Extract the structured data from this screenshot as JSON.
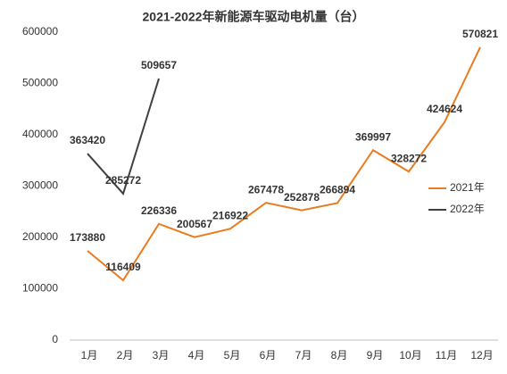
{
  "chart_data": {
    "type": "line",
    "title": "2021-2022年新能源车驱动电机量（台）",
    "categories": [
      "1月",
      "2月",
      "3月",
      "4月",
      "5月",
      "6月",
      "7月",
      "8月",
      "9月",
      "10月",
      "11月",
      "12月"
    ],
    "series": [
      {
        "name": "2021年",
        "color": "#e97c1f",
        "values": [
          173880,
          116409,
          226336,
          200567,
          216922,
          267478,
          252878,
          266894,
          369997,
          328272,
          424624,
          570821
        ]
      },
      {
        "name": "2022年",
        "color": "#404040",
        "values": [
          363420,
          285272,
          509657,
          null,
          null,
          null,
          null,
          null,
          null,
          null,
          null,
          null
        ]
      }
    ],
    "ylim": [
      0,
      600000
    ],
    "yticks": [
      0,
      100000,
      200000,
      300000,
      400000,
      500000,
      600000
    ],
    "grid": false,
    "legend": "right"
  }
}
